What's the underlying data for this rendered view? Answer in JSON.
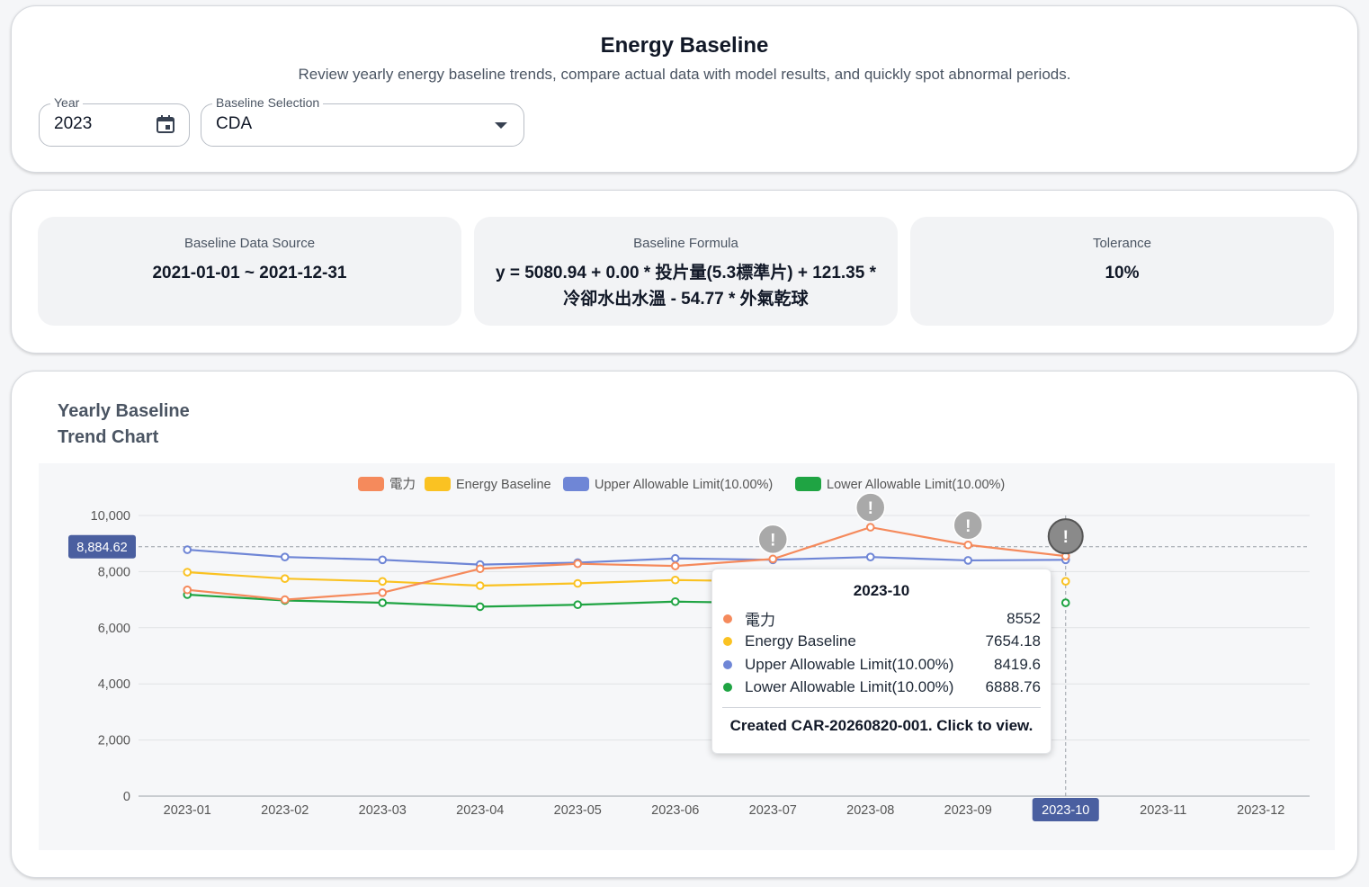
{
  "header": {
    "title": "Energy Baseline",
    "subtitle": "Review yearly energy baseline trends, compare actual data with model results, and quickly spot abnormal periods.",
    "year_label": "Year",
    "year_value": "2023",
    "baseline_label": "Baseline Selection",
    "baseline_value": "CDA"
  },
  "info": {
    "source_label": "Baseline Data Source",
    "source_value": "2021-01-01 ~ 2021-12-31",
    "formula_label": "Baseline Formula",
    "formula_value": "y = 5080.94 + 0.00 * 投片量(5.3標準片) + 121.35 * 冷卻水出水溫 - 54.77 * 外氣乾球",
    "tolerance_label": "Tolerance",
    "tolerance_value": "10%"
  },
  "chart_section": {
    "title": "Yearly Baseline Trend Chart"
  },
  "chart_data": {
    "type": "line",
    "title": "Yearly Baseline Trend Chart",
    "categories": [
      "2023-01",
      "2023-02",
      "2023-03",
      "2023-04",
      "2023-05",
      "2023-06",
      "2023-07",
      "2023-08",
      "2023-09",
      "2023-10",
      "2023-11",
      "2023-12"
    ],
    "ylim": [
      0,
      10000
    ],
    "yticks": [
      0,
      2000,
      4000,
      6000,
      8000,
      10000
    ],
    "ytick_labels": [
      "0",
      "2,000",
      "4,000",
      "6,000",
      "8,000",
      "10,000"
    ],
    "grid": true,
    "legend_position": "top-center",
    "series": [
      {
        "name": "電力",
        "color": "#f58a5c",
        "values": [
          7350,
          7000,
          7250,
          8100,
          8280,
          8200,
          8450,
          9580,
          8950,
          8552,
          null,
          null
        ]
      },
      {
        "name": "Energy Baseline",
        "color": "#fac222",
        "values": [
          7980,
          7750,
          7650,
          7500,
          7580,
          7700,
          7650,
          null,
          null,
          7654.18,
          null,
          null
        ]
      },
      {
        "name": "Upper Allowable Limit(10.00%)",
        "color": "#6f86d6",
        "values": [
          8780,
          8520,
          8420,
          8250,
          8320,
          8470,
          8420,
          8520,
          8400,
          8419.6,
          null,
          null
        ]
      },
      {
        "name": "Lower Allowable Limit(10.00%)",
        "color": "#1fa443",
        "values": [
          7180,
          6970,
          6890,
          6750,
          6820,
          6930,
          6880,
          null,
          null,
          6888.76,
          null,
          null
        ]
      }
    ],
    "alert_months": [
      "2023-07",
      "2023-08",
      "2023-09",
      "2023-10"
    ],
    "alert_symbol": "!",
    "crosshair": {
      "y_label": "8,884.62",
      "y_value": 8884.62,
      "x_label": "2023-10"
    },
    "tooltip": {
      "title": "2023-10",
      "rows": [
        {
          "name": "電力",
          "value": "8552",
          "color": "#f58a5c"
        },
        {
          "name": "Energy Baseline",
          "value": "7654.18",
          "color": "#fac222"
        },
        {
          "name": "Upper Allowable Limit(10.00%)",
          "value": "8419.6",
          "color": "#6f86d6"
        },
        {
          "name": "Lower Allowable Limit(10.00%)",
          "value": "6888.76",
          "color": "#1fa443"
        }
      ],
      "footer": "Created CAR-20260820-001. Click to view."
    }
  }
}
